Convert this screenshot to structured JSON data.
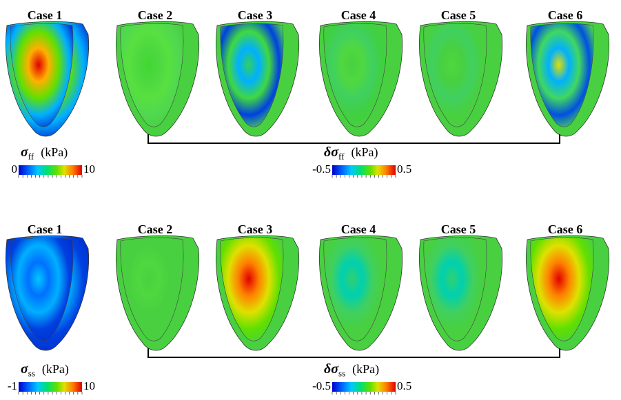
{
  "rows": [
    {
      "cases": [
        "Case 1",
        "Case 2",
        "Case 3",
        "Case 4",
        "Case 5",
        "Case 6"
      ],
      "colorbars": [
        {
          "symbol": "σ",
          "subscript": "ff",
          "unit": "(kPa)",
          "min": "0",
          "max": "10"
        },
        {
          "symbol": "δσ",
          "subscript": "ff",
          "unit": "(kPa)",
          "min": "-0.5",
          "max": "0.5"
        }
      ]
    },
    {
      "cases": [
        "Case 1",
        "Case 2",
        "Case 3",
        "Case 4",
        "Case 5",
        "Case 6"
      ],
      "colorbars": [
        {
          "symbol": "σ",
          "subscript": "ss",
          "unit": "(kPa)",
          "min": "-1",
          "max": "10"
        },
        {
          "symbol": "δσ",
          "subscript": "ss",
          "unit": "(kPa)",
          "min": "-0.5",
          "max": "0.5"
        }
      ]
    }
  ]
}
